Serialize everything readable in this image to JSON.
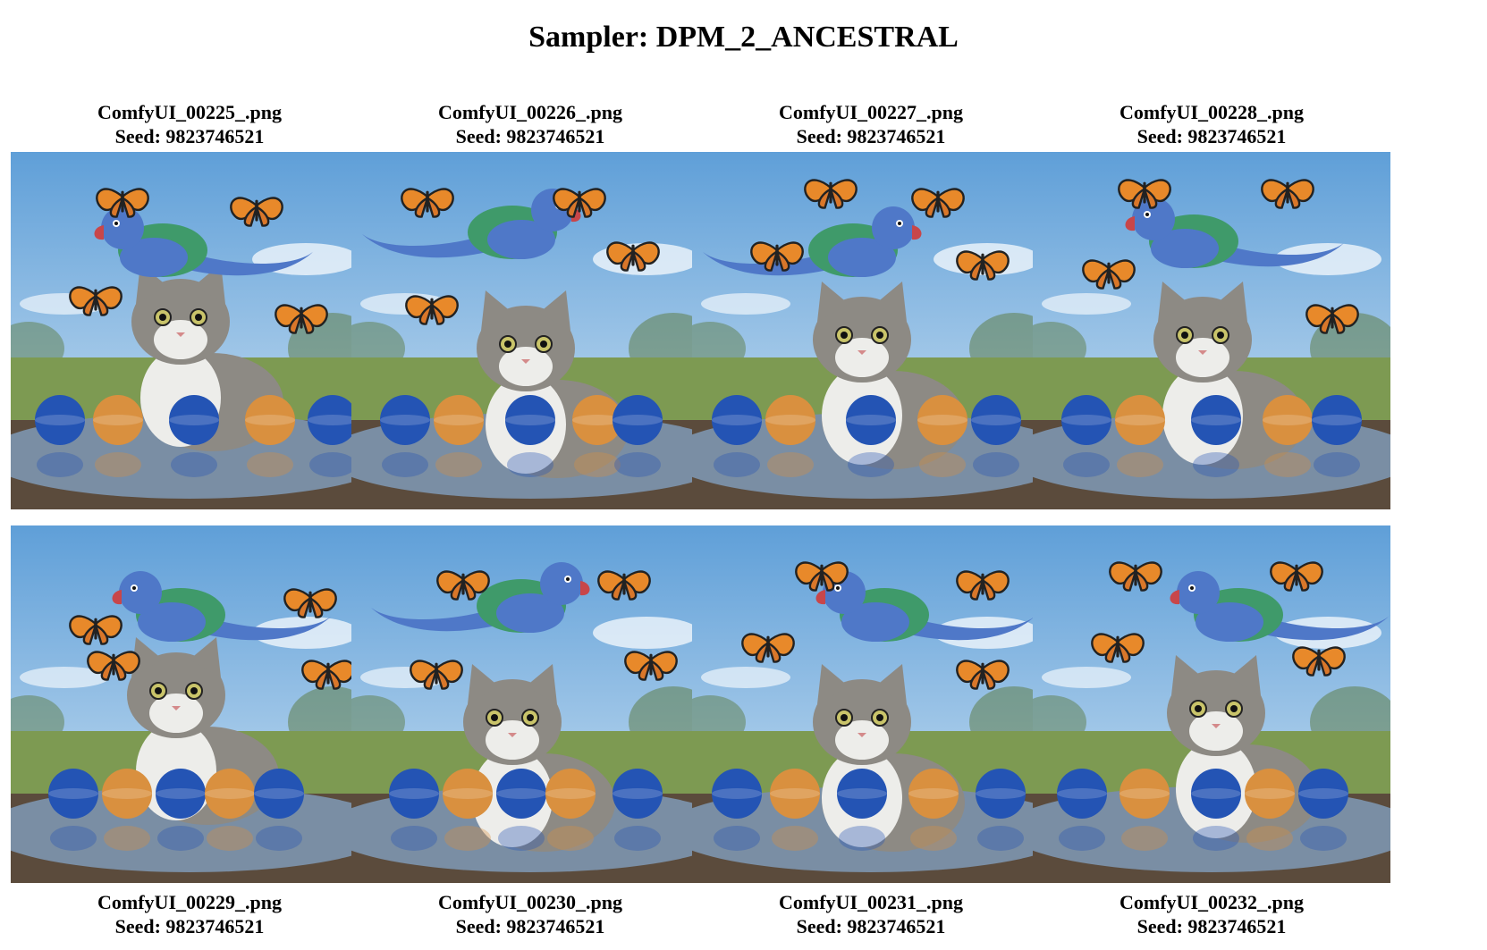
{
  "title": "Sampler: DPM_2_ANCESTRAL",
  "images": [
    {
      "filename": "ComfyUI_00225_.png",
      "seed": "Seed: 9823746521",
      "variant": 0
    },
    {
      "filename": "ComfyUI_00226_.png",
      "seed": "Seed: 9823746521",
      "variant": 1
    },
    {
      "filename": "ComfyUI_00227_.png",
      "seed": "Seed: 9823746521",
      "variant": 2
    },
    {
      "filename": "ComfyUI_00228_.png",
      "seed": "Seed: 9823746521",
      "variant": 3
    },
    {
      "filename": "ComfyUI_00229_.png",
      "seed": "Seed: 9823746521",
      "variant": 4
    },
    {
      "filename": "ComfyUI_00230_.png",
      "seed": "Seed: 9823746521",
      "variant": 5
    },
    {
      "filename": "ComfyUI_00231_.png",
      "seed": "Seed: 9823746521",
      "variant": 6
    },
    {
      "filename": "ComfyUI_00232_.png",
      "seed": "Seed: 9823746521",
      "variant": 7
    }
  ],
  "colors": {
    "sky_top": "#5f9fd8",
    "sky_bottom": "#cfe3f3",
    "grass": "#7d9a52",
    "water": "#7a8ea4",
    "mud": "#5b4b3c",
    "cat_grey": "#8d8a84",
    "cat_white": "#ededea",
    "parrot_blue": "#4f78c8",
    "parrot_green": "#3f9a6a",
    "butterfly_orange": "#e8892a",
    "ball_blue": "#2454b4",
    "ball_orange": "#d9903f"
  }
}
